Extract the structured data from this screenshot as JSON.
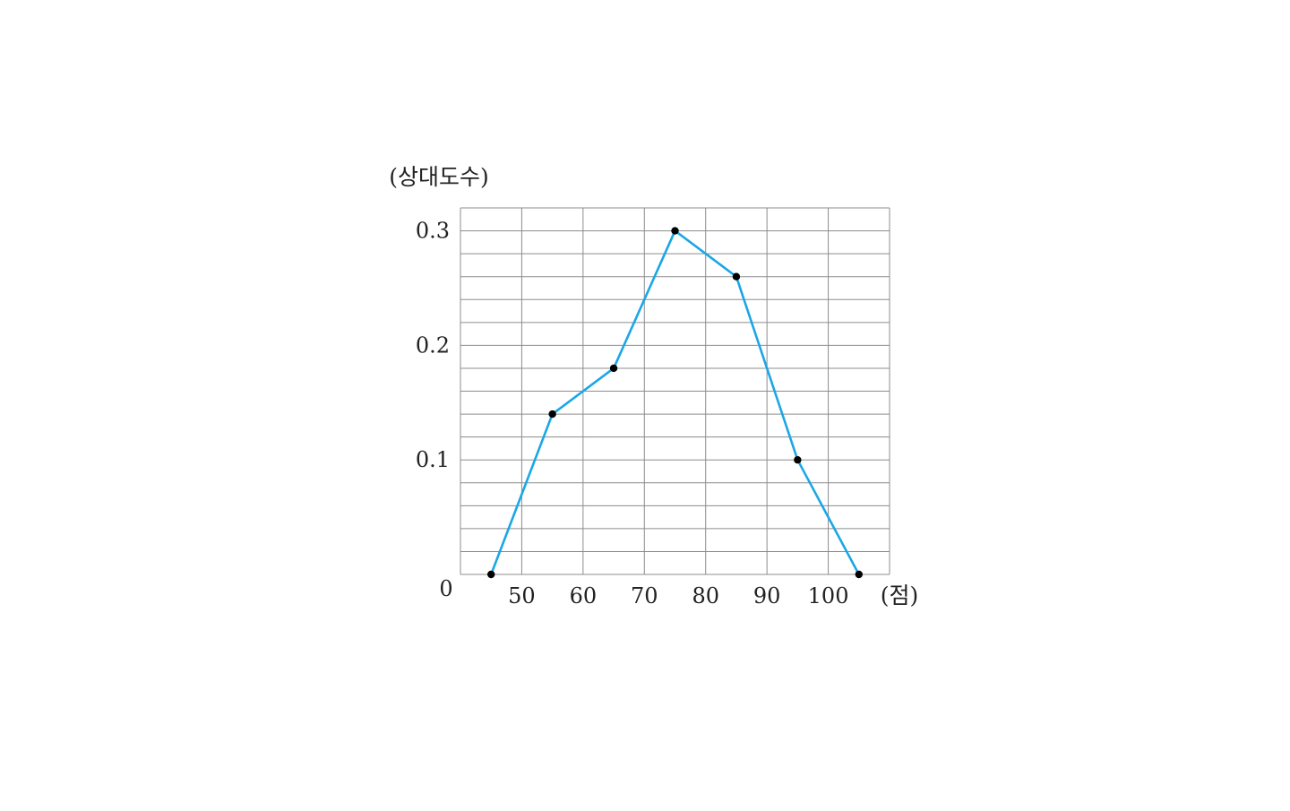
{
  "chart_data": {
    "type": "line",
    "title": "",
    "ylabel": "(상대도수)",
    "xlabel": "(점)",
    "origin_label": "0",
    "x": [
      45,
      55,
      65,
      75,
      85,
      95,
      105
    ],
    "series": [
      {
        "values": [
          0,
          0.14,
          0.18,
          0.3,
          0.26,
          0.1,
          0
        ]
      }
    ],
    "x_ticks": [
      50,
      60,
      70,
      80,
      90,
      100
    ],
    "x_tick_labels": [
      "50",
      "60",
      "70",
      "80",
      "90",
      "100"
    ],
    "y_ticks": [
      0.1,
      0.2,
      0.3
    ],
    "y_tick_labels": [
      "0.1",
      "0.2",
      "0.3"
    ],
    "xlim": [
      40,
      110
    ],
    "ylim": [
      0,
      0.32
    ],
    "grid": true,
    "grid_x_step": 10,
    "grid_y_step": 0.02,
    "line_color": "#1aa7e6",
    "marker_color": "#000000",
    "grid_color": "#8c8c8c"
  }
}
